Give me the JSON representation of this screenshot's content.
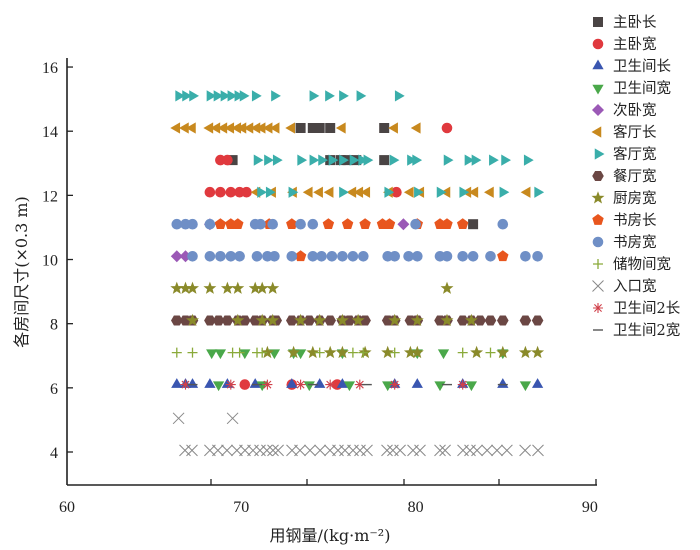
{
  "chart_data": {
    "type": "scatter",
    "title": "",
    "xlabel": "用钢量/(kg·m⁻²)",
    "ylabel": "各房间尺寸(×0.3 m)",
    "xlim": [
      60,
      90
    ],
    "ylim": [
      3,
      16.4
    ],
    "xticks": [
      "60",
      "70",
      "80",
      "90"
    ],
    "xtick_values": [
      60,
      70,
      80,
      90
    ],
    "yticks": [
      "4",
      "6",
      "8",
      "10",
      "12",
      "14",
      "16"
    ],
    "ytick_values": [
      4,
      6,
      8,
      10,
      12,
      14,
      16
    ],
    "grid": false,
    "legend_placement": "right",
    "series": [
      {
        "name": "主卧长",
        "marker": "square",
        "color": "#4a4444",
        "rows": [
          {
            "y": 14.1,
            "x": [
              73.4,
              74.1,
              74.5,
              75.1,
              78.2
            ]
          },
          {
            "y": 13.1,
            "x": [
              69.5,
              75.1,
              75.7,
              76.1,
              76.6,
              78.2
            ]
          },
          {
            "y": 11.1,
            "x": [
              83.3
            ]
          }
        ]
      },
      {
        "name": "主卧宽",
        "marker": "circle",
        "color": "#e0393e",
        "rows": [
          {
            "y": 14.1,
            "x": [
              81.8
            ]
          },
          {
            "y": 13.1,
            "x": [
              68.8,
              69.2
            ]
          },
          {
            "y": 12.1,
            "x": [
              68.2,
              68.8,
              69.4,
              69.9,
              70.3,
              78.9
            ]
          },
          {
            "y": 6.1,
            "x": [
              70.2,
              72.9,
              75.5
            ]
          }
        ]
      },
      {
        "name": "卫生间长",
        "marker": "triangle-up",
        "color": "#3a56b0",
        "rows": [
          {
            "y": 6.1,
            "x": [
              66.3,
              66.8,
              67.2,
              68.2,
              69.2,
              70.8,
              72.9,
              74.5,
              75.8,
              78.8,
              80.1,
              82.7,
              85.0,
              87.0
            ]
          }
        ]
      },
      {
        "name": "卫生间宽",
        "marker": "triangle-down",
        "color": "#4aa84a",
        "rows": [
          {
            "y": 7.1,
            "x": [
              68.3,
              68.8,
              70.2,
              71.9,
              73.0,
              73.4,
              75.8,
              80.1,
              81.6,
              85.0
            ]
          },
          {
            "y": 6.1,
            "x": [
              68.7,
              71.2,
              73.9,
              76.2,
              78.4,
              81.4,
              83.2,
              86.3
            ]
          }
        ]
      },
      {
        "name": "次卧宽",
        "marker": "diamond",
        "color": "#9b59b6",
        "rows": [
          {
            "y": 11.1,
            "x": [
              68.2,
              79.3
            ]
          },
          {
            "y": 10.1,
            "x": [
              66.3,
              66.8
            ]
          }
        ]
      },
      {
        "name": "客厅长",
        "marker": "triangle-left",
        "color": "#c8891e",
        "rows": [
          {
            "y": 14.1,
            "x": [
              66.3,
              66.8,
              67.2,
              68.2,
              68.6,
              69.0,
              69.4,
              69.8,
              70.1,
              70.5,
              70.9,
              71.2,
              71.6,
              72.0,
              72.9,
              75.8,
              78.8,
              80.1
            ]
          },
          {
            "y": 12.1,
            "x": [
              70.9,
              71.8,
              73.0,
              73.9,
              74.5,
              75.1,
              76.4,
              76.8,
              77.2,
              78.5,
              79.7,
              80.3,
              81.8,
              83.0,
              83.4,
              84.3,
              86.4
            ]
          }
        ]
      },
      {
        "name": "客厅宽",
        "marker": "triangle-right",
        "color": "#3aaeaa",
        "rows": [
          {
            "y": 15.1,
            "x": [
              66.4,
              66.8,
              67.2,
              68.2,
              68.6,
              69.0,
              69.4,
              69.8,
              70.1,
              70.8,
              71.9,
              74.1,
              75.0,
              75.8,
              76.8,
              79.0
            ]
          },
          {
            "y": 13.1,
            "x": [
              70.9,
              71.5,
              72.0,
              73.4,
              74.1,
              74.6,
              75.2,
              75.8,
              76.4,
              76.9,
              77.2,
              78.7,
              79.7,
              80.0,
              81.8,
              83.0,
              83.4,
              84.4,
              85.1,
              86.4
            ]
          },
          {
            "y": 12.1,
            "x": [
              71.1,
              71.6,
              72.9,
              75.8,
              78.4,
              80.1,
              81.4,
              82.7,
              85.0,
              87.0
            ]
          }
        ]
      },
      {
        "name": "餐厅宽",
        "marker": "hexagon",
        "color": "#6b4744",
        "rows": [
          {
            "y": 8.1,
            "x": [
              66.3,
              66.8,
              67.2,
              68.2,
              68.7,
              69.2,
              69.8,
              70.2,
              70.8,
              71.2,
              71.8,
              72.0,
              72.9,
              73.4,
              73.9,
              74.5,
              75.1,
              75.8,
              76.2,
              76.7,
              77.1,
              78.4,
              78.8,
              79.7,
              80.1,
              81.4,
              81.8,
              82.7,
              83.2,
              83.7,
              84.3,
              85.0,
              86.3,
              87.0
            ]
          }
        ]
      },
      {
        "name": "厨房宽",
        "marker": "star",
        "color": "#8a8a2a",
        "rows": [
          {
            "y": 9.1,
            "x": [
              66.3,
              66.8,
              67.2,
              68.2,
              69.2,
              69.8,
              70.8,
              71.2,
              71.8,
              81.8
            ]
          },
          {
            "y": 8.1,
            "x": [
              67.2,
              69.8,
              71.2,
              71.8,
              73.4,
              74.5,
              75.8,
              76.7,
              78.8,
              80.1,
              81.8,
              83.2
            ]
          },
          {
            "y": 7.1,
            "x": [
              71.5,
              73.0,
              74.1,
              75.1,
              75.8,
              77.1,
              78.4,
              79.7,
              80.1,
              83.5,
              85.0,
              86.3,
              87.0
            ]
          }
        ]
      },
      {
        "name": "书房长",
        "marker": "pentagon",
        "color": "#e8561e",
        "rows": [
          {
            "y": 11.1,
            "x": [
              68.8,
              69.4,
              69.8,
              71.6,
              72.9,
              75.0,
              76.1,
              77.1,
              78.1,
              78.5,
              80.1,
              81.4,
              81.8,
              82.7
            ]
          },
          {
            "y": 10.1,
            "x": [
              73.4,
              85.0
            ]
          }
        ]
      },
      {
        "name": "书房宽",
        "marker": "circle",
        "color": "#6f8fc6",
        "rows": [
          {
            "y": 11.1,
            "x": [
              66.3,
              66.8,
              67.2,
              68.2,
              70.8,
              71.1,
              71.8,
              73.4,
              74.1,
              80.0,
              85.0
            ]
          },
          {
            "y": 10.1,
            "x": [
              67.2,
              68.2,
              68.8,
              69.4,
              69.9,
              70.9,
              71.5,
              71.9,
              72.9,
              74.1,
              74.6,
              75.2,
              75.8,
              76.4,
              77.0,
              78.4,
              78.8,
              79.6,
              80.1,
              81.4,
              81.8,
              82.7,
              83.3,
              84.3,
              86.3,
              87.0
            ]
          }
        ]
      },
      {
        "name": "储物间宽",
        "marker": "plus",
        "color": "#8aaa3a",
        "rows": [
          {
            "y": 7.1,
            "x": [
              66.3,
              67.2,
              69.5,
              69.9,
              70.9,
              71.2,
              74.5,
              76.4,
              77.0,
              78.8,
              82.7,
              84.3
            ]
          }
        ]
      },
      {
        "name": "入口宽",
        "marker": "x",
        "color": "#888888",
        "rows": [
          {
            "y": 5.05,
            "x": [
              66.4,
              69.5
            ]
          },
          {
            "y": 4.05,
            "x": [
              66.77,
              67.17,
              68.2,
              68.66,
              69.18,
              69.75,
              70.21,
              70.67,
              71.07,
              71.47,
              71.82,
              72.11,
              72.91,
              73.37,
              73.94,
              74.52,
              75.09,
              75.55,
              75.95,
              76.41,
              76.81,
              77.21,
              78.36,
              78.7,
              79.11,
              79.85,
              80.25,
              81.4,
              81.69,
              82.72,
              83.12,
              83.52,
              84.1,
              84.67,
              85.24,
              86.28,
              87.02
            ]
          }
        ]
      },
      {
        "name": "卫生间2长",
        "marker": "asterisk",
        "color": "#d0404a",
        "rows": [
          {
            "y": 6.1,
            "x": [
              66.8,
              69.4,
              71.5,
              73.4,
              75.1,
              76.8,
              78.8,
              82.7
            ]
          }
        ]
      },
      {
        "name": "卫生间2宽",
        "marker": "dash",
        "color": "#555555",
        "rows": [
          {
            "y": 6.1,
            "x": [
              67.2,
              70.9,
              74.1,
              77.2,
              81.8,
              85.0
            ]
          }
        ]
      }
    ]
  }
}
